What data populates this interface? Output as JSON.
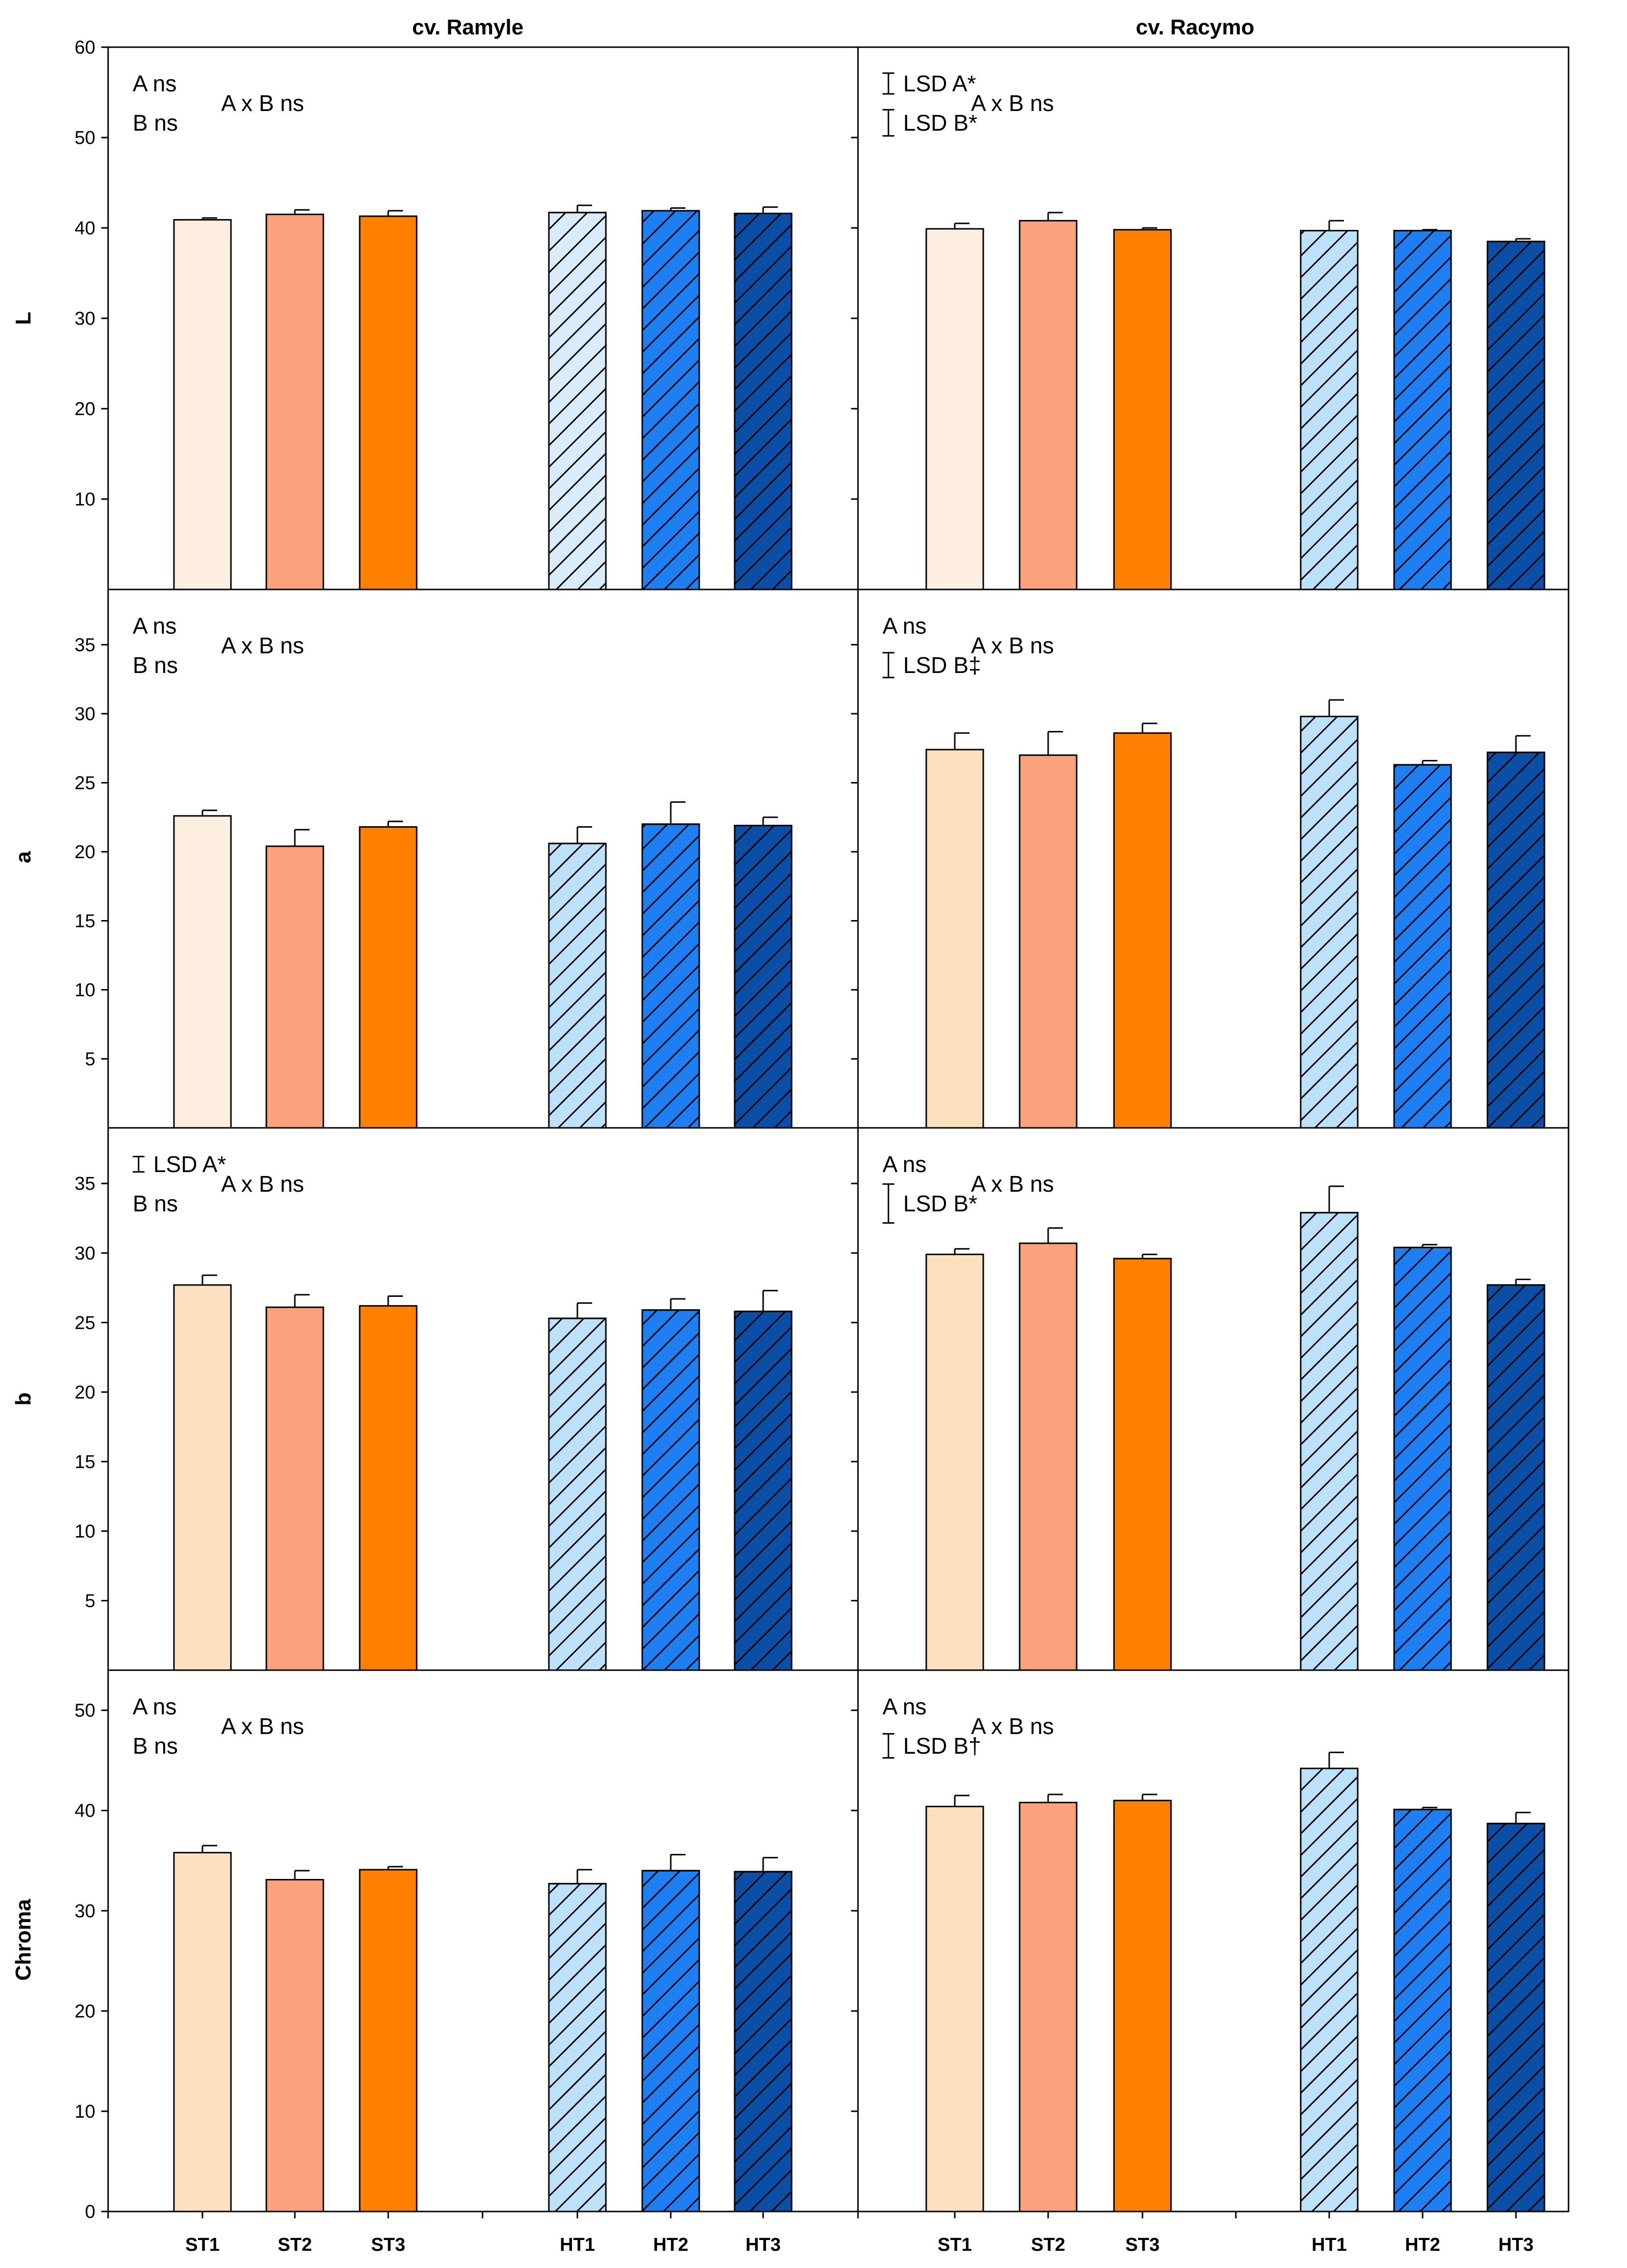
{
  "column_titles": [
    "cv. Ramyle",
    "cv. Racymo"
  ],
  "row_labels": [
    "L",
    "a",
    "b",
    "Chroma"
  ],
  "categories": [
    "ST1",
    "ST2",
    "ST3",
    "HT1",
    "HT2",
    "HT3"
  ],
  "legend_colors": {
    "ST1_pale": "#fdeee0",
    "ST1": "#fde0c0",
    "ST2": "#fba27c",
    "ST3": "#ff8000",
    "HT1_pale": "#d8ecfb",
    "HT1": "#bde0fb",
    "HT2": "#1e7ff2",
    "HT3": "#0b4ea6"
  },
  "chart_data": [
    {
      "type": "bar",
      "row": "L",
      "column": "cv. Ramyle",
      "ylabel": "L",
      "ylim": [
        0,
        60
      ],
      "yticks": [
        10,
        20,
        30,
        40,
        50,
        60
      ],
      "categories": [
        "ST1",
        "ST2",
        "ST3",
        "HT1",
        "HT2",
        "HT3"
      ],
      "values": [
        40.9,
        41.5,
        41.3,
        41.7,
        41.9,
        41.6
      ],
      "errors": [
        0.2,
        0.5,
        0.6,
        0.8,
        0.3,
        0.7
      ],
      "annotations": [
        {
          "text": "A ns",
          "lsd": false
        },
        {
          "text": "B ns",
          "lsd": false
        },
        {
          "text": "A x B ns",
          "lsd": false
        }
      ]
    },
    {
      "type": "bar",
      "row": "L",
      "column": "cv. Racymo",
      "ylabel": "L",
      "ylim": [
        0,
        60
      ],
      "categories": [
        "ST1",
        "ST2",
        "ST3",
        "HT1",
        "HT2",
        "HT3"
      ],
      "values": [
        39.9,
        40.8,
        39.8,
        39.7,
        39.7,
        38.5
      ],
      "errors": [
        0.6,
        0.9,
        0.2,
        1.1,
        0.1,
        0.3
      ],
      "annotations": [
        {
          "text": "LSD  A*",
          "lsd": true,
          "lsd_size": 2.3
        },
        {
          "text": "LSD  B*",
          "lsd": true,
          "lsd_size": 2.9
        },
        {
          "text": "A x B ns",
          "lsd": false
        }
      ]
    },
    {
      "type": "bar",
      "row": "a",
      "column": "cv. Ramyle",
      "ylabel": "a",
      "ylim": [
        0,
        39
      ],
      "yticks": [
        5,
        10,
        15,
        20,
        25,
        30,
        35
      ],
      "categories": [
        "ST1",
        "ST2",
        "ST3",
        "HT1",
        "HT2",
        "HT3"
      ],
      "values": [
        22.6,
        20.4,
        21.8,
        20.6,
        22.0,
        21.9
      ],
      "errors": [
        0.4,
        1.2,
        0.4,
        1.2,
        1.6,
        0.6
      ],
      "annotations": [
        {
          "text": "A ns",
          "lsd": false
        },
        {
          "text": "B ns",
          "lsd": false
        },
        {
          "text": "A x B ns",
          "lsd": false
        }
      ]
    },
    {
      "type": "bar",
      "row": "a",
      "column": "cv. Racymo",
      "ylabel": "a",
      "ylim": [
        0,
        39
      ],
      "categories": [
        "ST1",
        "ST2",
        "ST3",
        "HT1",
        "HT2",
        "HT3"
      ],
      "values": [
        27.4,
        27.0,
        28.6,
        29.8,
        26.3,
        27.2
      ],
      "errors": [
        1.2,
        1.7,
        0.7,
        1.2,
        0.3,
        1.2
      ],
      "annotations": [
        {
          "text": "A ns",
          "lsd": false
        },
        {
          "text": "LSD  B‡",
          "lsd": true,
          "lsd_size": 1.8
        },
        {
          "text": "A x B ns",
          "lsd": false
        }
      ]
    },
    {
      "type": "bar",
      "row": "b",
      "column": "cv. Ramyle",
      "ylabel": "b",
      "ylim": [
        0,
        39
      ],
      "yticks": [
        5,
        10,
        15,
        20,
        25,
        30,
        35
      ],
      "categories": [
        "ST1",
        "ST2",
        "ST3",
        "HT1",
        "HT2",
        "HT3"
      ],
      "values": [
        27.7,
        26.1,
        26.2,
        25.3,
        25.9,
        25.8
      ],
      "errors": [
        0.7,
        0.9,
        0.7,
        1.1,
        0.8,
        1.5
      ],
      "annotations": [
        {
          "text": "LSD  A*",
          "lsd": true,
          "lsd_size": 1.1
        },
        {
          "text": "B ns",
          "lsd": false
        },
        {
          "text": "A x B ns",
          "lsd": false
        }
      ]
    },
    {
      "type": "bar",
      "row": "b",
      "column": "cv. Racymo",
      "ylabel": "b",
      "ylim": [
        0,
        39
      ],
      "categories": [
        "ST1",
        "ST2",
        "ST3",
        "HT1",
        "HT2",
        "HT3"
      ],
      "values": [
        29.9,
        30.7,
        29.6,
        32.9,
        30.4,
        27.7
      ],
      "errors": [
        0.4,
        1.1,
        0.3,
        1.9,
        0.2,
        0.4
      ],
      "annotations": [
        {
          "text": "A ns",
          "lsd": false
        },
        {
          "text": "LSD  B*",
          "lsd": true,
          "lsd_size": 2.8
        },
        {
          "text": "A x B ns",
          "lsd": false
        }
      ]
    },
    {
      "type": "bar",
      "row": "Chroma",
      "column": "cv. Ramyle",
      "ylabel": "Chroma",
      "ylim": [
        0,
        54
      ],
      "yticks": [
        0,
        10,
        20,
        30,
        40,
        50
      ],
      "categories": [
        "ST1",
        "ST2",
        "ST3",
        "HT1",
        "HT2",
        "HT3"
      ],
      "values": [
        35.8,
        33.1,
        34.1,
        32.7,
        34.0,
        33.9
      ],
      "errors": [
        0.7,
        0.9,
        0.3,
        1.4,
        1.6,
        1.4
      ],
      "annotations": [
        {
          "text": "A ns",
          "lsd": false
        },
        {
          "text": "B ns",
          "lsd": false
        },
        {
          "text": "A x B ns",
          "lsd": false
        }
      ]
    },
    {
      "type": "bar",
      "row": "Chroma",
      "column": "cv. Racymo",
      "ylabel": "Chroma",
      "ylim": [
        0,
        54
      ],
      "categories": [
        "ST1",
        "ST2",
        "ST3",
        "HT1",
        "HT2",
        "HT3"
      ],
      "values": [
        40.4,
        40.8,
        41.0,
        44.2,
        40.1,
        38.7
      ],
      "errors": [
        1.1,
        0.8,
        0.6,
        1.6,
        0.2,
        1.1
      ],
      "annotations": [
        {
          "text": "A ns",
          "lsd": false
        },
        {
          "text": "LSD  B†",
          "lsd": true,
          "lsd_size": 2.4
        },
        {
          "text": "A x B ns",
          "lsd": false
        }
      ]
    }
  ]
}
